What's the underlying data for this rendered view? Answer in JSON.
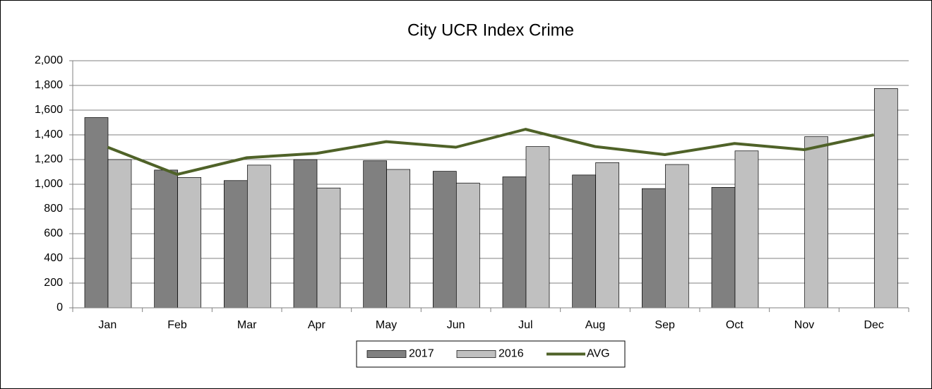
{
  "chart_data": {
    "type": "bar",
    "title": "City UCR Index Crime",
    "categories": [
      "Jan",
      "Feb",
      "Mar",
      "Apr",
      "May",
      "Jun",
      "Jul",
      "Aug",
      "Sep",
      "Oct",
      "Nov",
      "Dec"
    ],
    "series": [
      {
        "name": "2017",
        "color": "#808080",
        "values": [
          1540,
          1115,
          1030,
          1200,
          1190,
          1105,
          1060,
          1075,
          965,
          975,
          null,
          null
        ]
      },
      {
        "name": "2016",
        "color": "#c0c0c0",
        "values": [
          1200,
          1055,
          1155,
          970,
          1120,
          1010,
          1305,
          1175,
          1160,
          1270,
          1385,
          1775
        ]
      },
      {
        "name": "AVG",
        "type": "line",
        "color": "#4f6228",
        "values": [
          1300,
          1080,
          1215,
          1250,
          1345,
          1300,
          1445,
          1305,
          1240,
          1330,
          1280,
          1400
        ]
      }
    ],
    "ylim": [
      0,
      2000
    ],
    "yticks": [
      0,
      200,
      400,
      600,
      800,
      {
        "value": 1000,
        "label": "1,000"
      },
      {
        "value": 1200,
        "label": "1,200"
      },
      {
        "value": 1400,
        "label": "1,400"
      },
      {
        "value": 1600,
        "label": "1,600"
      },
      {
        "value": 1800,
        "label": "1,800"
      },
      {
        "value": 2000,
        "label": "2,000"
      }
    ],
    "grid": true,
    "legend": "bottom"
  }
}
